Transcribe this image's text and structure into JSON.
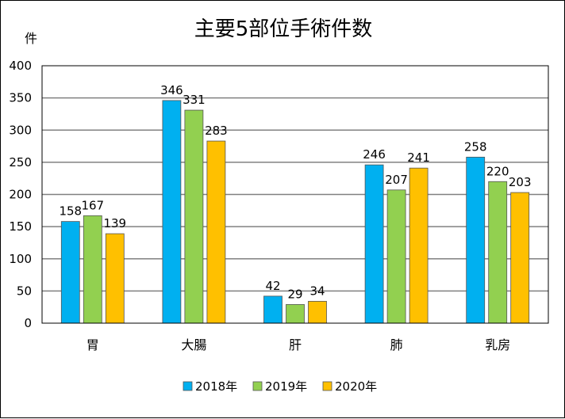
{
  "chart_data": {
    "type": "bar",
    "title": "主要5部位手術件数",
    "ylabel": "件",
    "xlabel": "",
    "ylim": [
      0,
      400
    ],
    "yticks": [
      0,
      50,
      100,
      150,
      200,
      250,
      300,
      350,
      400
    ],
    "grid": true,
    "legend_position": "bottom",
    "categories": [
      "胃",
      "大腸",
      "肝",
      "肺",
      "乳房"
    ],
    "series": [
      {
        "name": "2018年",
        "color": "#00B0F0",
        "values": [
          158,
          346,
          42,
          246,
          258
        ]
      },
      {
        "name": "2019年",
        "color": "#92D050",
        "values": [
          167,
          331,
          29,
          207,
          220
        ]
      },
      {
        "name": "2020年",
        "color": "#FFC000",
        "values": [
          139,
          283,
          34,
          241,
          203
        ]
      }
    ]
  }
}
